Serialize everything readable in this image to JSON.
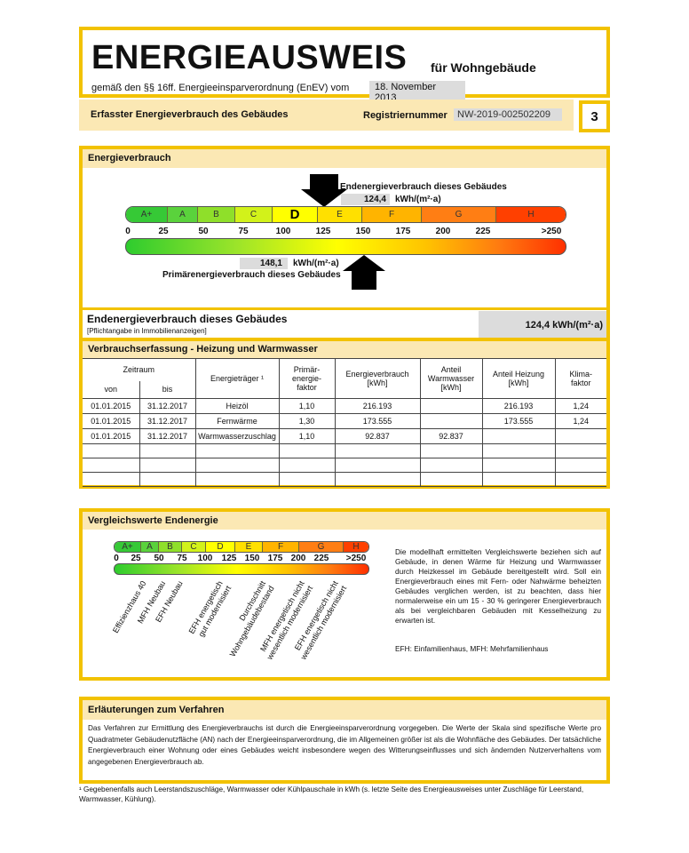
{
  "header": {
    "title": "ENERGIEAUSWEIS",
    "subtitle": "für Wohngebäude",
    "regulation": "gemäß den §§ 16ff. Energieeinsparverordnung (EnEV) vom",
    "regulation_date": "18. November 2013"
  },
  "subheader": {
    "section": "Erfasster Energieverbrauch des Gebäudes",
    "reg_label": "Registriernummer",
    "reg_number": "NW-2019-002502209",
    "page": "3"
  },
  "energy": {
    "title": "Energieverbrauch",
    "end_label": "Endenergieverbrauch dieses Gebäudes",
    "end_value": "124,4",
    "unit": "kWh/(m²·a)",
    "primary_label": "Primärenergieverbrauch dieses Gebäudes",
    "primary_value": "148,1",
    "classes": [
      "A+",
      "A",
      "B",
      "C",
      "D",
      "E",
      "F",
      "G",
      "H"
    ],
    "ticks": [
      "0",
      "25",
      "50",
      "75",
      "100",
      "125",
      "150",
      "175",
      "200",
      "225",
      ">250"
    ],
    "highlight_class": "D"
  },
  "summary": {
    "title": "Endenergieverbrauch dieses Gebäudes",
    "note": "[Pflichtangabe in Immobilienanzeigen]",
    "value": "124,4 kWh/(m²·a)"
  },
  "consumption": {
    "title": "Verbrauchserfassung - Heizung und Warmwasser",
    "headers": {
      "period": "Zeitraum",
      "from": "von",
      "to": "bis",
      "carrier": "Energieträger ¹",
      "factor": "Primär-\nenergie-\nfaktor",
      "consumption": "Energieverbrauch\n[kWh]",
      "water": "Anteil\nWarmwasser\n[kWh]",
      "heating": "Anteil Heizung\n[kWh]",
      "climate": "Klima-\nfaktor"
    },
    "rows": [
      [
        "01.01.2015",
        "31.12.2017",
        "Heizöl",
        "1,10",
        "216.193",
        "",
        "216.193",
        "1,24"
      ],
      [
        "01.01.2015",
        "31.12.2017",
        "Fernwärme",
        "1,30",
        "173.555",
        "",
        "173.555",
        "1,24"
      ],
      [
        "01.01.2015",
        "31.12.2017",
        "Warmwasserzuschlag",
        "1,10",
        "92.837",
        "92.837",
        "",
        ""
      ],
      [
        "",
        "",
        "",
        "",
        "",
        "",
        "",
        ""
      ],
      [
        "",
        "",
        "",
        "",
        "",
        "",
        "",
        ""
      ],
      [
        "",
        "",
        "",
        "",
        "",
        "",
        "",
        ""
      ]
    ]
  },
  "comparison": {
    "title": "Vergleichswerte Endenergie",
    "labels": [
      "Effizienzhaus 40",
      "MFH Neubau",
      "EFH Neubau",
      "EFH energetisch\ngut modernisiert",
      "Durchschnitt\nWohngebäudebestand",
      "MFH energetisch nicht\nwesentlich modernisiert",
      "EFH energetisch nicht\nwesentlich modernisiert"
    ],
    "text": "Die modellhaft ermittelten Vergleichswerte beziehen sich auf Gebäude, in denen Wärme für Heizung und Warmwasser durch Heizkessel im Gebäude bereitgestellt wird. Soll ein Energieverbrauch eines mit Fern- oder Nahwärme beheizten Gebäudes verglichen werden, ist zu beachten, dass hier normalerweise ein um 15 - 30 % geringerer Energieverbrauch als bei vergleichbaren Gebäuden mit Kesselheizung zu erwarten ist.",
    "abbr": "EFH: Einfamilienhaus, MFH: Mehrfamilienhaus"
  },
  "explanation": {
    "title": "Erläuterungen zum Verfahren",
    "text": "Das Verfahren zur Ermittlung des Energieverbrauchs ist durch die Energieeinsparverordnung vorgegeben. Die Werte der Skala sind spezifische Werte pro Quadratmeter Gebäudenutzfläche (AN) nach der Energieeinsparverordnung, die im Allgemeinen größer ist als die Wohnfläche des Gebäudes. Der tatsächliche Energieverbrauch einer Wohnung oder eines Gebäudes weicht insbesondere wegen des Witterungseinflusses und sich ändernden Nutzerverhaltens vom angegebenen Energieverbrauch ab."
  },
  "footnote": "¹ Gegebenenfalls auch Leerstandszuschläge, Warmwasser oder Kühlpauschale in kWh (s. letzte Seite des Energieausweises unter Zuschläge für Leerstand, Warmwasser, Kühlung).",
  "colors": {
    "frame": "#f2c200",
    "band": "#fbe8b4",
    "value_bg": "#dcdcdc"
  }
}
